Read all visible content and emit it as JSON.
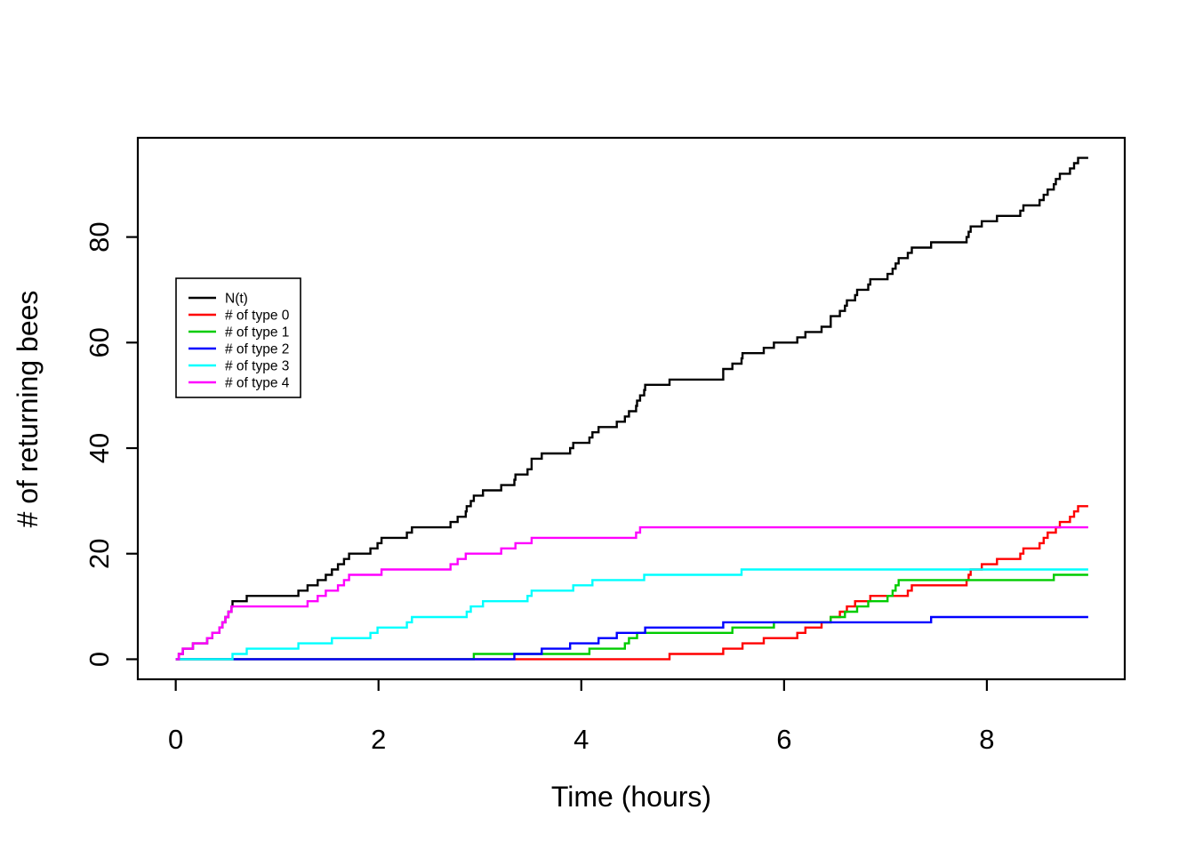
{
  "chart_data": {
    "type": "line",
    "style": "step-counting-process",
    "title": "",
    "xlabel": "Time (hours)",
    "ylabel": "# of returning bees",
    "xlim": [
      0,
      9
    ],
    "ylim": [
      0,
      95
    ],
    "x_ticks": [
      0,
      2,
      4,
      6,
      8
    ],
    "y_ticks": [
      0,
      20,
      40,
      60,
      80
    ],
    "grid": false,
    "legend": {
      "position": "upper-left-inside",
      "entries": [
        {
          "label": "N(t)",
          "color": "#000000"
        },
        {
          "label": "# of type 0",
          "color": "#FF0000"
        },
        {
          "label": "# of type 1",
          "color": "#00CC00"
        },
        {
          "label": "# of type 2",
          "color": "#0000FF"
        },
        {
          "label": "# of type 3",
          "color": "#00FFFF"
        },
        {
          "label": "# of type 4",
          "color": "#FF00FF"
        }
      ]
    },
    "series": [
      {
        "name": "N(t)",
        "color": "#000000",
        "final_value": 95,
        "start": [
          0,
          0
        ],
        "end_time": 9,
        "jump_times": [
          0.03,
          0.07,
          0.17,
          0.31,
          0.36,
          0.43,
          0.46,
          0.49,
          0.52,
          0.55,
          0.56,
          0.7,
          1.21,
          1.3,
          1.4,
          1.48,
          1.54,
          1.6,
          1.66,
          1.71,
          1.92,
          1.99,
          2.03,
          2.28,
          2.33,
          2.71,
          2.78,
          2.86,
          2.87,
          2.91,
          2.94,
          3.03,
          3.21,
          3.34,
          3.35,
          3.47,
          3.51,
          3.51,
          3.61,
          3.89,
          3.92,
          4.08,
          4.11,
          4.17,
          4.35,
          4.43,
          4.47,
          4.54,
          4.55,
          4.58,
          4.62,
          4.63,
          4.87,
          5.4,
          5.4,
          5.49,
          5.58,
          5.59,
          5.8,
          5.9,
          6.13,
          6.21,
          6.37,
          6.46,
          6.46,
          6.55,
          6.6,
          6.62,
          6.7,
          6.72,
          6.83,
          6.85,
          7.02,
          7.07,
          7.1,
          7.13,
          7.22,
          7.26,
          7.45,
          7.8,
          7.82,
          7.84,
          7.95,
          8.1,
          8.33,
          8.36,
          8.52,
          8.56,
          8.6,
          8.66,
          8.68,
          8.72,
          8.82,
          8.86,
          8.9
        ]
      },
      {
        "name": "# of type 0",
        "color": "#FF0000",
        "final_value": 29,
        "start": [
          0,
          0
        ],
        "end_time": 9,
        "jump_times": [
          4.87,
          5.4,
          5.59,
          5.8,
          6.13,
          6.21,
          6.37,
          6.46,
          6.55,
          6.62,
          6.7,
          6.85,
          7.22,
          7.26,
          7.8,
          7.82,
          7.84,
          7.95,
          8.1,
          8.33,
          8.36,
          8.52,
          8.56,
          8.6,
          8.68,
          8.72,
          8.82,
          8.86,
          8.9
        ]
      },
      {
        "name": "# of type 1",
        "color": "#00CC00",
        "final_value": 16,
        "start": [
          0,
          0
        ],
        "end_time": 9,
        "jump_times": [
          2.94,
          4.08,
          4.43,
          4.47,
          4.55,
          5.49,
          5.9,
          6.46,
          6.6,
          6.72,
          6.83,
          7.02,
          7.07,
          7.1,
          7.13,
          8.66
        ]
      },
      {
        "name": "# of type 2",
        "color": "#0000FF",
        "final_value": 8,
        "start": [
          0,
          0
        ],
        "end_time": 9,
        "jump_times": [
          3.34,
          3.61,
          3.89,
          4.17,
          4.35,
          4.63,
          5.4,
          7.45
        ]
      },
      {
        "name": "# of type 3",
        "color": "#00FFFF",
        "final_value": 17,
        "start": [
          0,
          0
        ],
        "end_time": 9,
        "jump_times": [
          0.56,
          0.7,
          1.21,
          1.54,
          1.92,
          1.99,
          2.28,
          2.33,
          2.87,
          2.91,
          3.03,
          3.47,
          3.51,
          3.92,
          4.11,
          4.62,
          5.58
        ]
      },
      {
        "name": "# of type 4",
        "color": "#FF00FF",
        "final_value": 25,
        "start": [
          0,
          0
        ],
        "end_time": 9,
        "jump_times": [
          0.03,
          0.07,
          0.17,
          0.31,
          0.36,
          0.43,
          0.46,
          0.49,
          0.52,
          0.55,
          1.3,
          1.4,
          1.48,
          1.6,
          1.66,
          1.71,
          2.03,
          2.71,
          2.78,
          2.86,
          3.21,
          3.35,
          3.51,
          4.54,
          4.58
        ]
      }
    ]
  }
}
